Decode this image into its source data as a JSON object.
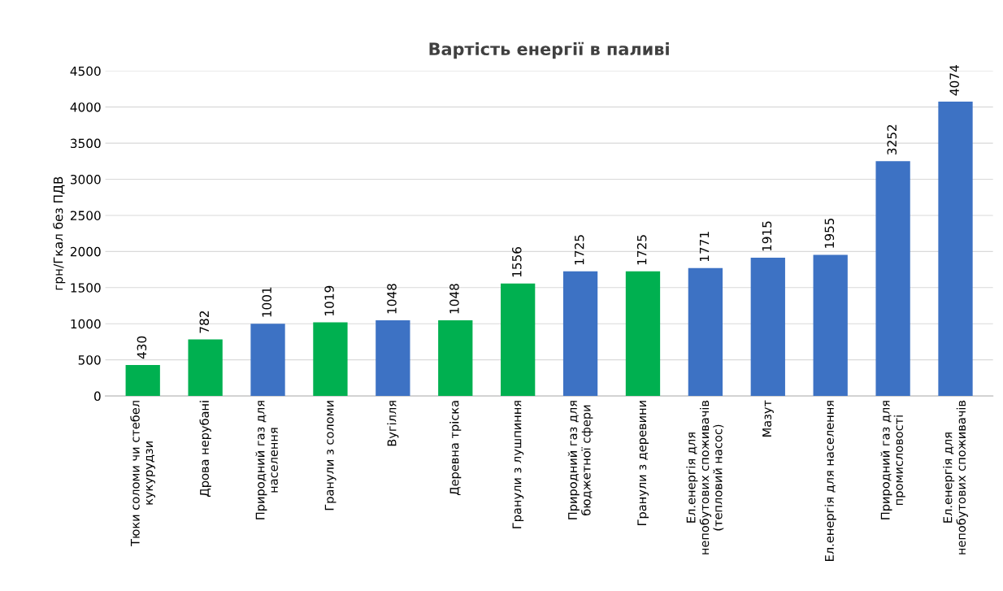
{
  "chart_data": {
    "type": "bar",
    "title": "Вартість енергії в паливі",
    "ylabel": "грн/Гкал без ПДВ",
    "categories": [
      "Тюки соломи чи стебел\nкукурудзи",
      "Дрова нерубані",
      "Природний газ для\nнаселення",
      "Гранули з соломи",
      "Вугілля",
      "Деревна тріска",
      "Гранули з лушпиння",
      "Природний газ для\nбюджетної сфери",
      "Гранули з деревини",
      "Ел.енергія для\nнепобутових споживачів\n(тепловий насос)",
      "Мазут",
      "Ел.енергія для населення",
      "Природний газ для\nпромисловості",
      "Ел.енергія для\nнепобутових споживачів"
    ],
    "values": [
      430,
      782,
      1001,
      1019,
      1048,
      1048,
      1556,
      1725,
      1725,
      1771,
      1915,
      1955,
      3252,
      4074
    ],
    "colors": [
      "#00b050",
      "#00b050",
      "#3d72c4",
      "#00b050",
      "#3d72c4",
      "#00b050",
      "#00b050",
      "#3d72c4",
      "#00b050",
      "#3d72c4",
      "#3d72c4",
      "#3d72c4",
      "#3d72c4",
      "#3d72c4"
    ],
    "ylim": [
      0,
      4500
    ],
    "yticks": [
      0,
      500,
      1000,
      1500,
      2000,
      2500,
      3000,
      3500,
      4000,
      4500
    ],
    "grid": "y",
    "data_labels": true
  }
}
